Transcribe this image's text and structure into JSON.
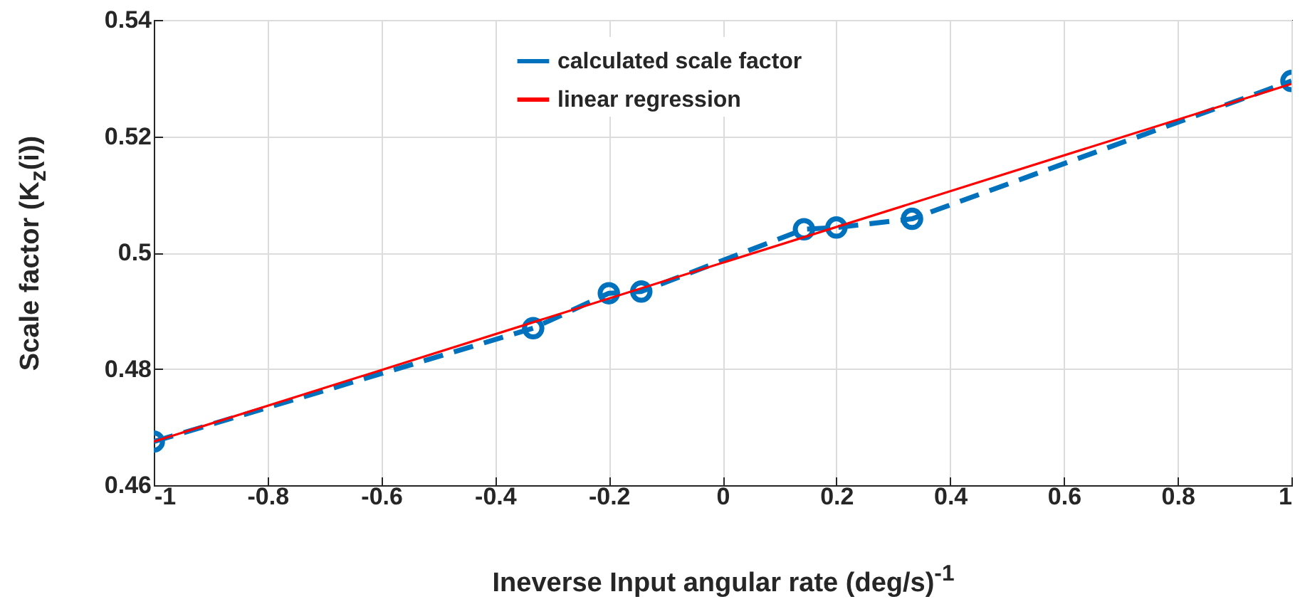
{
  "chart_data": {
    "type": "line",
    "xlabel": "Ineverse Input angular rate (deg/s)$^{-1}$",
    "ylabel": "Scale factor (K$_{z}$(i))",
    "xlim": [
      -1,
      1
    ],
    "xticks": [
      -1,
      -0.8,
      -0.6,
      -0.4,
      -0.2,
      0,
      0.2,
      0.4,
      0.6,
      0.8,
      1
    ],
    "ylim": [
      0.46,
      0.54
    ],
    "yticks": [
      0.46,
      0.48,
      0.5,
      0.52,
      0.54
    ],
    "grid": true,
    "legend": "top",
    "series": [
      {
        "name": "calculated scale factor",
        "color": "#0072bd",
        "line_style": "dashed",
        "marker": "circle",
        "x": [
          -1,
          -0.333,
          -0.2,
          -0.143,
          0.143,
          0.2,
          0.333,
          1
        ],
        "values": [
          0.4675,
          0.487,
          0.493,
          0.4933,
          0.504,
          0.5043,
          0.5058,
          0.5295
        ]
      },
      {
        "name": "linear regression",
        "color": "#ff0000",
        "line_style": "solid",
        "marker": "none",
        "x": [
          -1,
          1
        ],
        "values": [
          0.4675,
          0.529
        ]
      }
    ]
  }
}
